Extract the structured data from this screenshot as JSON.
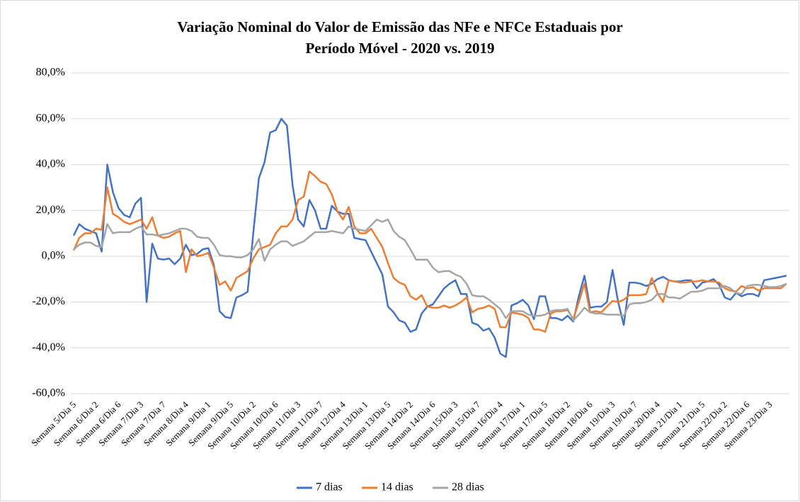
{
  "chart_data": {
    "type": "line",
    "title": [
      "Variação Nominal do Valor de Emissão das NFe e NFCe Estaduais por",
      "Período Móvel - 2020 vs. 2019"
    ],
    "categories": [
      "Semana 5/Dia 5",
      null,
      null,
      null,
      "Semana 6/Dia 2",
      null,
      null,
      null,
      "Semana 6/Dia 6",
      null,
      null,
      null,
      "Semana 7/Dia 3",
      null,
      null,
      null,
      "Semana 7/Dia 7",
      null,
      null,
      null,
      "Semana 8/Dia 4",
      null,
      null,
      null,
      "Semana 9/Dia 1",
      null,
      null,
      null,
      "Semana 9/Dia 5",
      null,
      null,
      null,
      "Semana 10/Dia 2",
      null,
      null,
      null,
      "Semana 10/Dia 6",
      null,
      null,
      null,
      "Semana 11/Dia 3",
      null,
      null,
      null,
      "Semana 11/Dia 7",
      null,
      null,
      null,
      "Semana 12/Dia 4",
      null,
      null,
      null,
      "Semana 13/Dia 1",
      null,
      null,
      null,
      "Semana 13/Dia 5",
      null,
      null,
      null,
      "Semana 14/Dia 2",
      null,
      null,
      null,
      "Semana 14/Dia 6",
      null,
      null,
      null,
      "Semana 15/Dia 3",
      null,
      null,
      null,
      "Semana 15/Dia 7",
      null,
      null,
      null,
      "Semana 16/Dia 4",
      null,
      null,
      null,
      "Semana 17/Dia 1",
      null,
      null,
      null,
      "Semana 17/Dia 5",
      null,
      null,
      null,
      "Semana 18/Dia 2",
      null,
      null,
      null,
      "Semana 18/Dia 6",
      null,
      null,
      null,
      "Semana 19/Dia 3",
      null,
      null,
      null,
      "Semana 19/Dia 7",
      null,
      null,
      null,
      "Semana 20/Dia 4",
      null,
      null,
      null,
      "Semana 21/Dia 1",
      null,
      null,
      null,
      "Semana 21/Dia 5",
      null,
      null,
      null,
      "Semana 22/Dia 2",
      null,
      null,
      null,
      "Semana 22/Dia 6",
      null,
      null,
      null,
      "Semana 23/Dia 3",
      null,
      null,
      null
    ],
    "series": [
      {
        "name": "7 dias",
        "color": "#4472c4",
        "values": [
          9,
          14,
          12,
          11,
          10,
          2,
          40,
          28,
          21,
          18,
          17,
          23,
          25.5,
          -20,
          5.5,
          -1,
          -1.5,
          -1,
          -3.5,
          -1,
          5,
          0.5,
          1,
          3,
          3.5,
          -4,
          -24,
          -26.5,
          -27,
          -18,
          -17,
          -15.5,
          10,
          34,
          41,
          54,
          55,
          60,
          57,
          31,
          16,
          13,
          24.5,
          20,
          12,
          12,
          22,
          19.5,
          18.5,
          18.5,
          8,
          7.5,
          7,
          2,
          -3,
          -8,
          -22,
          -24.5,
          -28,
          -29,
          -33,
          -32,
          -25,
          -22,
          -21,
          -17.5,
          -14,
          -12,
          -10.5,
          -16.5,
          -16.5,
          -29,
          -30,
          -32.5,
          -31.5,
          -35.5,
          -42.5,
          -44,
          -21.5,
          -20.5,
          -19,
          -21.5,
          -27.5,
          -17.5,
          -17.5,
          -27,
          -27,
          -28,
          -26,
          -28.5,
          -17.5,
          -8.5,
          -22.5,
          -22,
          -22,
          -20,
          -6,
          -20,
          -30,
          -11.5,
          -11.5,
          -12,
          -13,
          -12,
          -10,
          -9,
          -10.5,
          -11,
          -11,
          -10.5,
          -10.5,
          -14,
          -11.5,
          -11,
          -10,
          -12.5,
          -18,
          -19,
          -16,
          -17.5,
          -16.5,
          -16.5,
          -17.5,
          -10.5,
          -10,
          -9.5,
          -9,
          -8.5
        ]
      },
      {
        "name": "14 dias",
        "color": "#ed7d31",
        "values": [
          2.5,
          8,
          10,
          10,
          12,
          11.5,
          30,
          18.5,
          17,
          15,
          14,
          15,
          16,
          12,
          17,
          9,
          8,
          8.5,
          10,
          11,
          -7,
          3,
          0,
          0.5,
          1.5,
          -5,
          -12.5,
          -11,
          -15,
          -9.5,
          -8,
          -6.5,
          -1,
          3,
          4,
          5,
          10,
          13,
          13,
          16,
          24.5,
          26,
          37,
          35,
          32.5,
          31.5,
          27,
          19.5,
          16,
          21.5,
          13,
          10,
          10,
          12,
          8,
          4,
          -3,
          -9.5,
          -11.5,
          -12.5,
          -17.5,
          -19,
          -17,
          -22,
          -22.5,
          -22.5,
          -21.5,
          -22.5,
          -21.5,
          -20,
          -18,
          -24.5,
          -23,
          -22.5,
          -21.5,
          -23,
          -31,
          -31,
          -24.5,
          -25,
          -25.5,
          -27,
          -32,
          -32,
          -33,
          -25,
          -24,
          -24,
          -23.5,
          -27.5,
          -20,
          -12,
          -24.5,
          -24,
          -24.5,
          -22,
          -19.5,
          -20,
          -19,
          -17,
          -17,
          -17,
          -16.5,
          -9.5,
          -16,
          -20,
          -10.5,
          -11,
          -11.5,
          -11.5,
          -11,
          -11,
          -10.5,
          -11,
          -11,
          -11.5,
          -14,
          -15,
          -15.5,
          -13,
          -14,
          -13.5,
          -15,
          -14,
          -14,
          -14,
          -14,
          -12
        ]
      },
      {
        "name": "28 dias",
        "color": "#a5a5a5",
        "values": [
          3,
          5,
          6,
          6,
          4.5,
          4,
          14,
          10,
          10.5,
          10.5,
          10.5,
          12,
          13,
          9.5,
          9.5,
          9,
          9.5,
          10,
          11,
          12,
          12,
          11,
          8.5,
          8,
          8,
          5,
          0.5,
          0,
          0,
          -0.5,
          -0.5,
          0.5,
          3,
          7.5,
          -2,
          3,
          5,
          6.5,
          6.5,
          4.5,
          5.5,
          6.5,
          8.5,
          10.5,
          10.5,
          10.5,
          11,
          10.5,
          10,
          13,
          12,
          11.5,
          11,
          13.5,
          16,
          15,
          16,
          11,
          8.5,
          7,
          3,
          -1.5,
          -1.5,
          -1.5,
          -5,
          -7,
          -6.5,
          -6.5,
          -8,
          -9,
          -12,
          -17,
          -17.5,
          -17.5,
          -19,
          -21,
          -23,
          -27,
          -24,
          -24,
          -24,
          -25.5,
          -26,
          -26,
          -25.5,
          -24,
          -23.5,
          -23.5,
          -23,
          -28,
          -25.5,
          -22.5,
          -24.5,
          -25,
          -25,
          -25.5,
          -25.5,
          -25.5,
          -26,
          -21,
          -20.5,
          -20.5,
          -20,
          -19,
          -16.5,
          -16.5,
          -18,
          -18,
          -18.5,
          -17,
          -15.5,
          -15.5,
          -15,
          -14,
          -14,
          -14,
          -13,
          -14,
          -16,
          -16.5,
          -13,
          -12.5,
          -12.5,
          -13,
          -13.5,
          -13.5,
          -13,
          -12
        ]
      }
    ],
    "ylim": [
      -60,
      80
    ],
    "yticks": [
      {
        "value": -60,
        "label": "-60,0%"
      },
      {
        "value": -40,
        "label": "-40,0%"
      },
      {
        "value": -20,
        "label": "-20,0%"
      },
      {
        "value": 0,
        "label": "0,0%"
      },
      {
        "value": 20,
        "label": "20,0%"
      },
      {
        "value": 40,
        "label": "40,0%"
      },
      {
        "value": 60,
        "label": "60,0%"
      },
      {
        "value": 80,
        "label": "80,0%"
      }
    ],
    "grid": true,
    "legend": "bottom"
  }
}
